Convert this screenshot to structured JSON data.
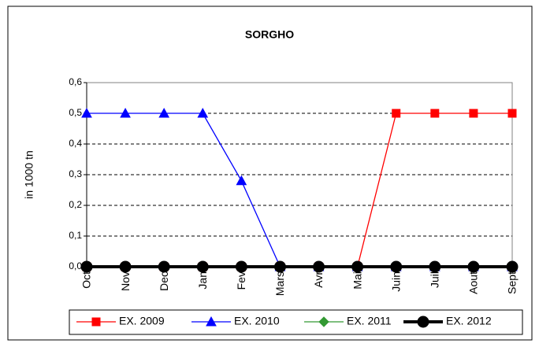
{
  "chart_data": {
    "type": "line",
    "title": "SORGHO",
    "y_label": "in 1000 tn",
    "categories": [
      "Oct",
      "Nov",
      "Dec",
      "Jan",
      "Fev",
      "Mars",
      "Avr",
      "Mai",
      "Juin",
      "Juil",
      "Aout",
      "Sept"
    ],
    "series": [
      {
        "name": "EX. 2009",
        "color": "#ff0000",
        "marker": "square",
        "values": [
          0,
          0,
          0,
          0,
          0,
          0,
          0,
          0,
          0.5,
          0.5,
          0.5,
          0.5
        ]
      },
      {
        "name": "EX. 2010",
        "color": "#0000ff",
        "marker": "triangle",
        "values": [
          0.5,
          0.5,
          0.5,
          0.5,
          0.28,
          0,
          0,
          0,
          0,
          0,
          0,
          0
        ]
      },
      {
        "name": "EX. 2011",
        "color": "#339933",
        "marker": "diamond",
        "values": [
          0,
          0,
          0,
          0,
          0,
          0,
          0,
          0,
          0,
          0,
          0,
          0
        ]
      },
      {
        "name": "EX. 2012",
        "color": "#000000",
        "marker": "circle",
        "values": [
          0,
          0,
          0,
          0,
          0,
          0,
          0,
          0,
          0,
          0,
          0,
          0
        ]
      }
    ],
    "ylim": [
      0,
      0.6
    ],
    "yticks": [
      {
        "value": 0,
        "label": "0,0"
      },
      {
        "value": 0.1,
        "label": "0,1"
      },
      {
        "value": 0.2,
        "label": "0,2"
      },
      {
        "value": 0.3,
        "label": "0,3"
      },
      {
        "value": 0.4,
        "label": "0,4"
      },
      {
        "value": 0.5,
        "label": "0,5"
      },
      {
        "value": 0.6,
        "label": "0,6"
      }
    ],
    "grid": true,
    "legend": "bottom"
  }
}
